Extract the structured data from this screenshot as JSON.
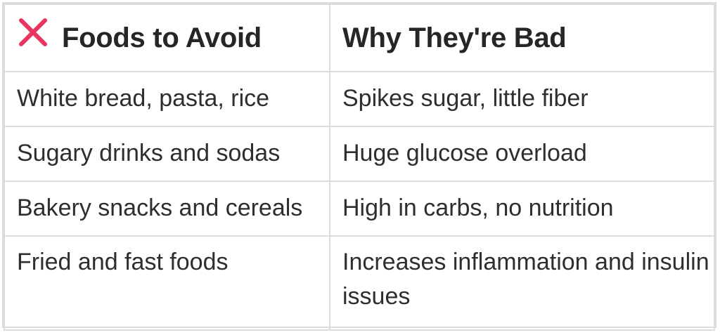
{
  "table": {
    "headers": {
      "col1_icon": "x-mark-icon",
      "col1": "Foods to Avoid",
      "col2": "Why They're Bad"
    },
    "rows": [
      {
        "food": "White bread, pasta, rice",
        "reason": "Spikes sugar, little fiber"
      },
      {
        "food": "Sugary drinks and sodas",
        "reason": "Huge glucose overload"
      },
      {
        "food": "Bakery snacks and cereals",
        "reason": "High in carbs, no nutrition"
      },
      {
        "food": "Fried and fast foods",
        "reason": "Increases inflammation and insulin issues"
      }
    ]
  },
  "colors": {
    "icon_accent": "#e8345f",
    "border": "#dcdcdc",
    "text": "#2b2b2b"
  }
}
